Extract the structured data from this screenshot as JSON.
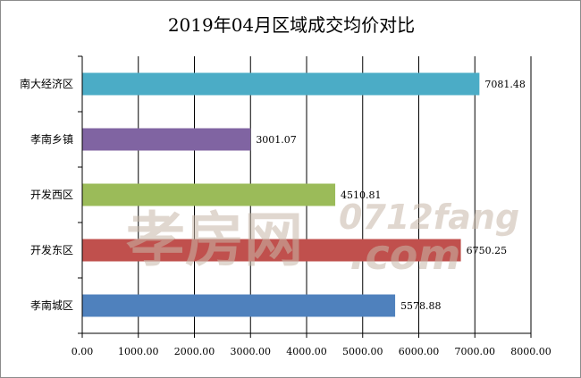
{
  "chart_data": {
    "type": "bar",
    "orientation": "horizontal",
    "title": "2019年04月区域成交均价对比",
    "categories": [
      "南大经济区",
      "孝南乡镇",
      "开发西区",
      "开发东区",
      "孝南城区"
    ],
    "values": [
      7081.48,
      3001.07,
      4510.81,
      6750.25,
      5578.88
    ],
    "value_labels": [
      "7081.48",
      "3001.07",
      "4510.81",
      "6750.25",
      "5578.88"
    ],
    "colors": [
      "#4bacc6",
      "#8064a2",
      "#9bbb59",
      "#c0504d",
      "#4f81bd"
    ],
    "xlim": [
      0,
      8000
    ],
    "xticks": [
      0,
      1000,
      2000,
      3000,
      4000,
      5000,
      6000,
      7000,
      8000
    ],
    "xtick_labels": [
      "0.00",
      "1000.00",
      "2000.00",
      "3000.00",
      "4000.00",
      "5000.00",
      "6000.00",
      "7000.00",
      "8000.00"
    ],
    "xlabel": "",
    "ylabel": "",
    "grid": "vertical",
    "legend": "none"
  },
  "watermark": {
    "cn": "孝房网",
    "en_top": "0712fang",
    "en_bottom": ".com"
  }
}
